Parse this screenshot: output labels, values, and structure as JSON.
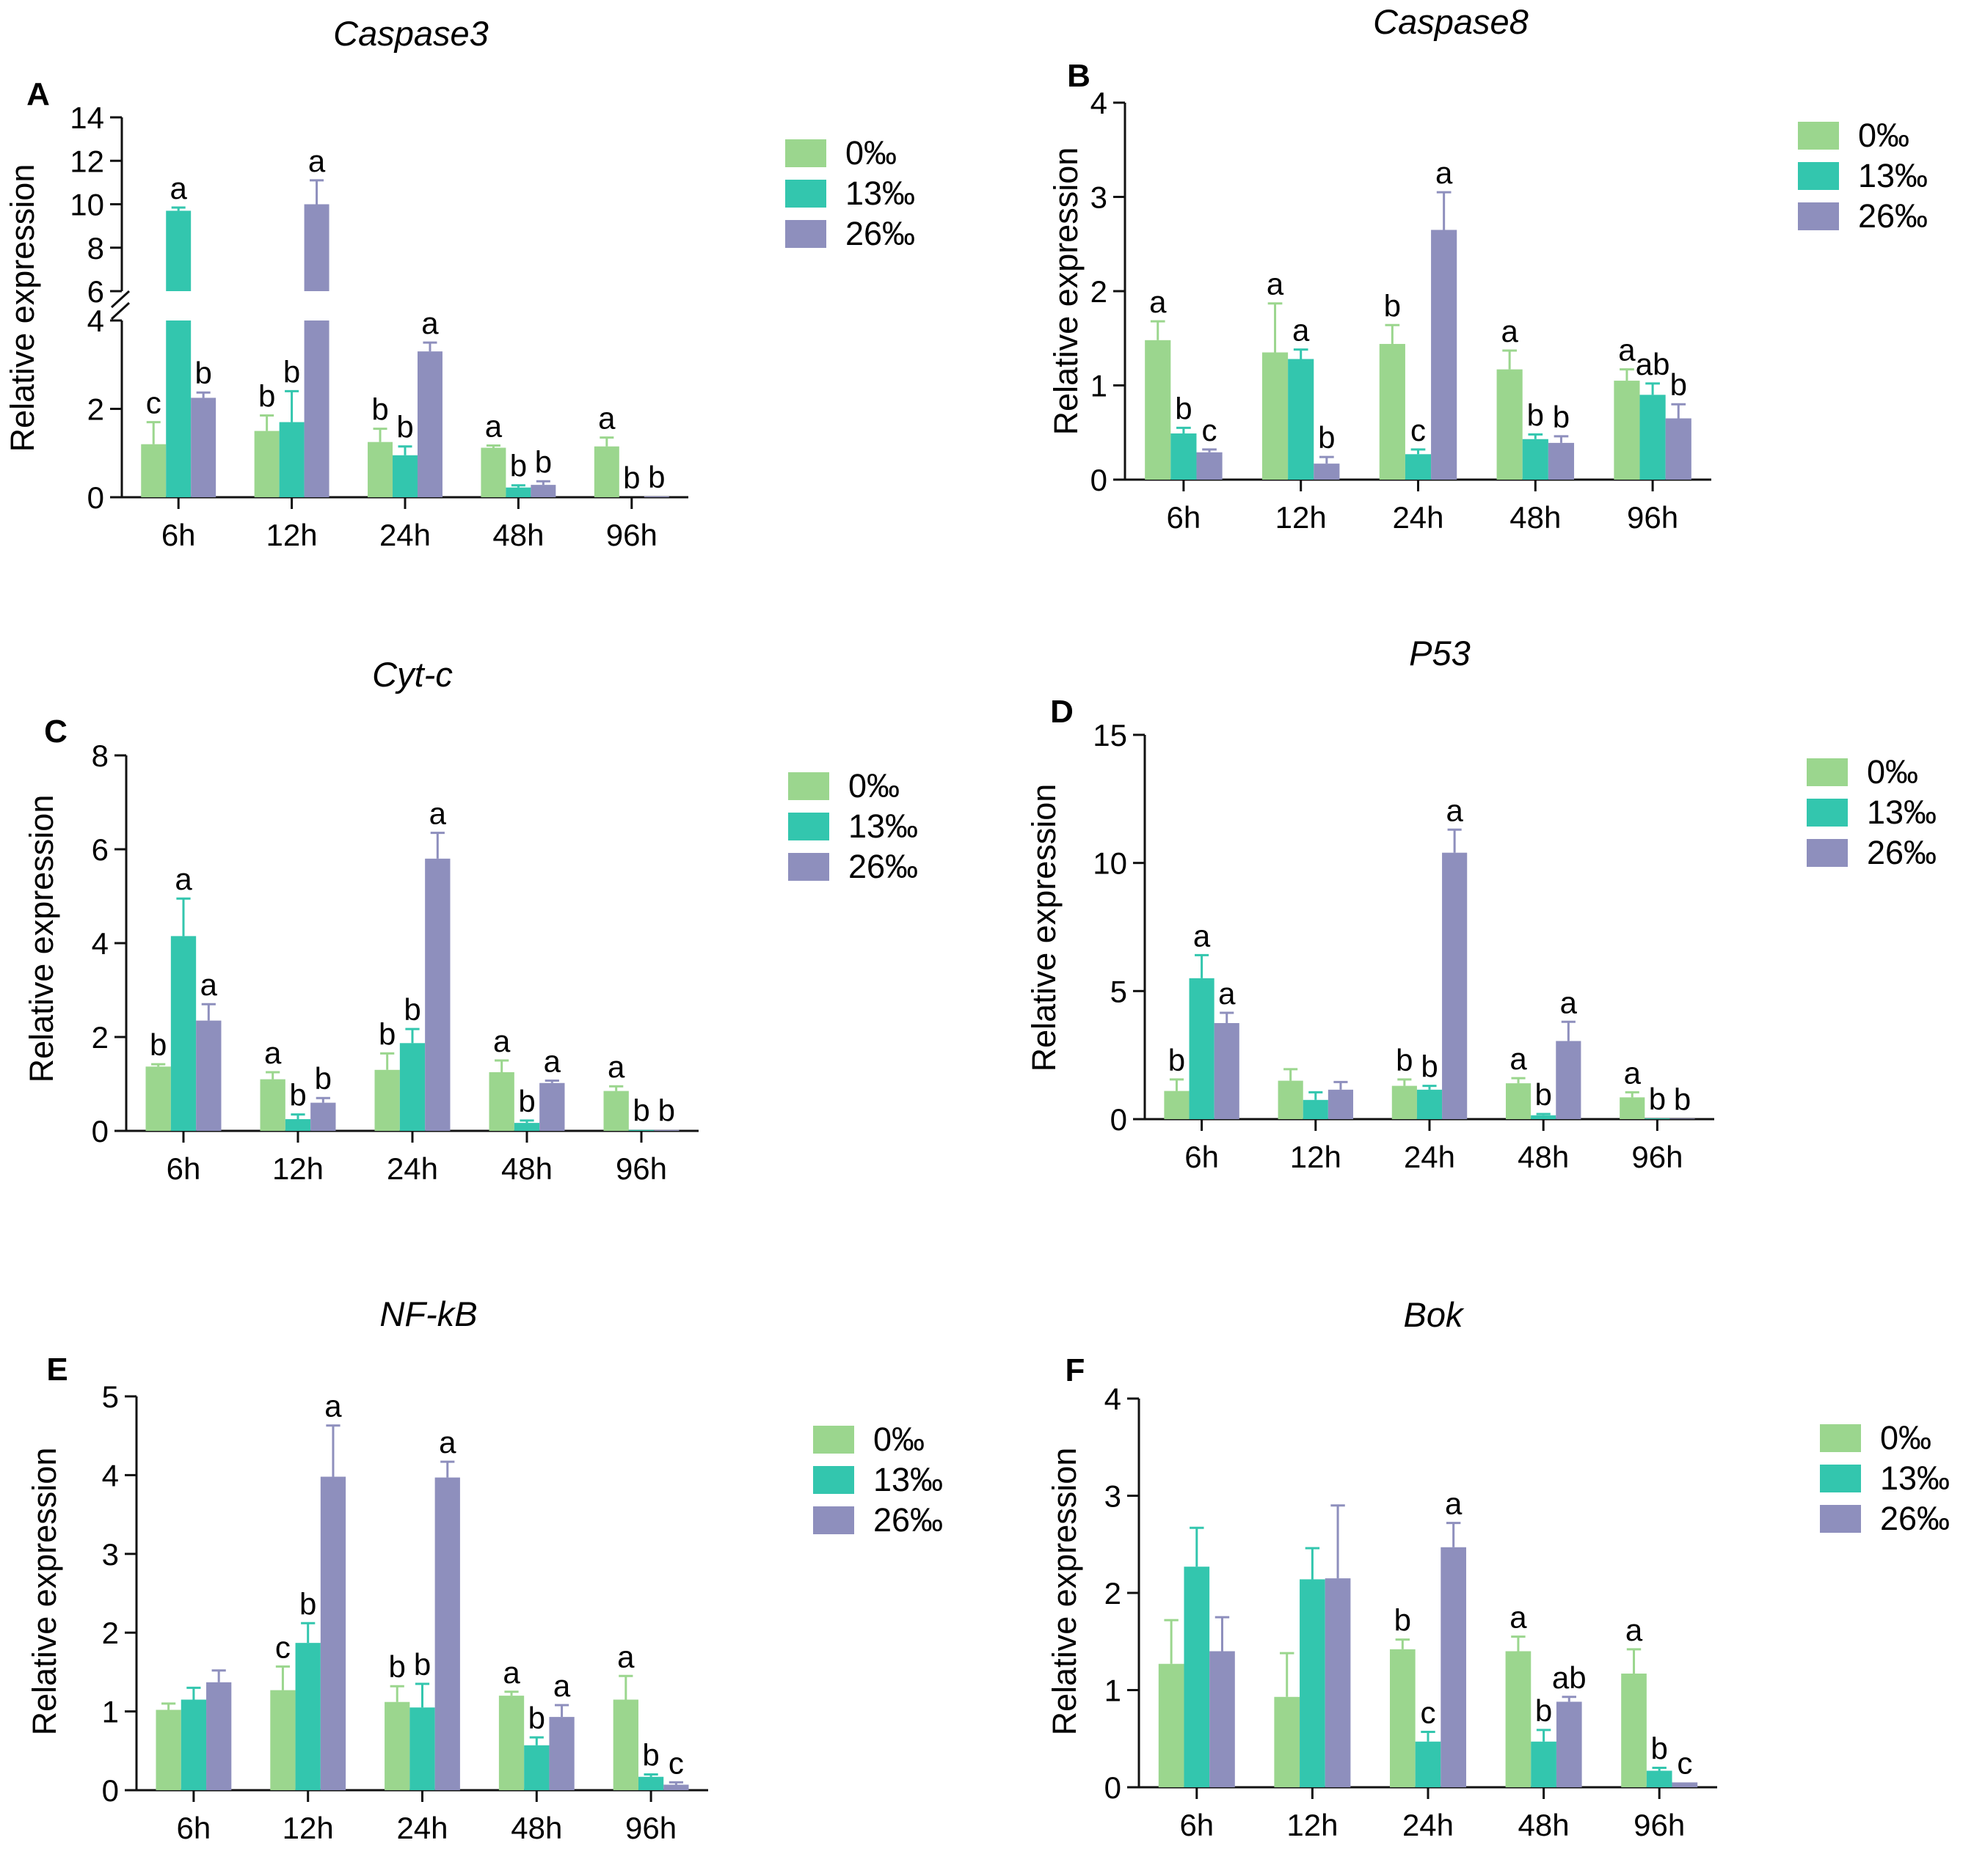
{
  "figure": {
    "colors": {
      "g0": "#9bd68e",
      "g13": "#33c6ae",
      "g26": "#8e8fbd"
    },
    "legend": [
      "0‰",
      "13‰",
      "26‰"
    ],
    "groups": [
      "6h",
      "12h",
      "24h",
      "48h",
      "96h"
    ],
    "ylabel": "Relative expression"
  },
  "chart_data": [
    {
      "type": "bar",
      "panel": "A",
      "title": "Caspase3",
      "ylabel": "Relative expression",
      "categories": [
        "6h",
        "12h",
        "24h",
        "48h",
        "96h"
      ],
      "axis_break": {
        "lower_range": [
          0,
          4
        ],
        "upper_range": [
          6,
          14
        ]
      },
      "yticks_lower": [
        "0",
        "2",
        "4"
      ],
      "yticks_upper": [
        "6",
        "8",
        "10",
        "12",
        "14"
      ],
      "series": [
        {
          "name": "0‰",
          "values": [
            1.2,
            1.5,
            1.25,
            1.12,
            1.15
          ],
          "errors": [
            0.5,
            0.35,
            0.3,
            0.05,
            0.2
          ],
          "labels": [
            "c",
            "b",
            "b",
            "a",
            "a"
          ]
        },
        {
          "name": "13‰",
          "values": [
            9.7,
            1.7,
            0.95,
            0.22,
            0.0
          ],
          "errors": [
            0.15,
            0.7,
            0.2,
            0.05,
            0.0
          ],
          "labels": [
            "a",
            "b",
            "b",
            "b",
            "b"
          ]
        },
        {
          "name": "26‰",
          "values": [
            2.25,
            10.0,
            3.3,
            0.28,
            0.02
          ],
          "errors": [
            0.12,
            1.1,
            0.2,
            0.08,
            0.0
          ],
          "labels": [
            "b",
            "a",
            "a",
            "b",
            "b"
          ]
        }
      ]
    },
    {
      "type": "bar",
      "panel": "B",
      "title": "Caspase8",
      "ylabel": "Relative expression",
      "categories": [
        "6h",
        "12h",
        "24h",
        "48h",
        "96h"
      ],
      "ylim": [
        0,
        4
      ],
      "yticks": [
        "0",
        "1",
        "2",
        "3",
        "4"
      ],
      "series": [
        {
          "name": "0‰",
          "values": [
            1.48,
            1.35,
            1.44,
            1.17,
            1.05
          ],
          "errors": [
            0.2,
            0.52,
            0.2,
            0.2,
            0.12
          ],
          "labels": [
            "a",
            "a",
            "b",
            "a",
            "a"
          ]
        },
        {
          "name": "13‰",
          "values": [
            0.49,
            1.28,
            0.27,
            0.43,
            0.9
          ],
          "errors": [
            0.06,
            0.1,
            0.05,
            0.05,
            0.12
          ],
          "labels": [
            "b",
            "a",
            "c",
            "b",
            "ab"
          ]
        },
        {
          "name": "26‰",
          "values": [
            0.29,
            0.17,
            2.65,
            0.39,
            0.65
          ],
          "errors": [
            0.03,
            0.07,
            0.4,
            0.07,
            0.15
          ],
          "labels": [
            "c",
            "b",
            "a",
            "b",
            "b"
          ]
        }
      ]
    },
    {
      "type": "bar",
      "panel": "C",
      "title": "Cyt-c",
      "ylabel": "Relative expression",
      "categories": [
        "6h",
        "12h",
        "24h",
        "48h",
        "96h"
      ],
      "ylim": [
        0,
        8
      ],
      "yticks": [
        "0",
        "2",
        "4",
        "6",
        "8"
      ],
      "series": [
        {
          "name": "0‰",
          "values": [
            1.37,
            1.1,
            1.3,
            1.25,
            0.85
          ],
          "errors": [
            0.05,
            0.15,
            0.35,
            0.25,
            0.1
          ],
          "labels": [
            "b",
            "a",
            "b",
            "a",
            "a"
          ]
        },
        {
          "name": "13‰",
          "values": [
            4.15,
            0.25,
            1.87,
            0.17,
            0.02
          ],
          "errors": [
            0.8,
            0.1,
            0.3,
            0.05,
            0.0
          ],
          "labels": [
            "a",
            "b",
            "b",
            "b",
            "b"
          ]
        },
        {
          "name": "26‰",
          "values": [
            2.35,
            0.6,
            5.8,
            1.02,
            0.02
          ],
          "errors": [
            0.35,
            0.1,
            0.55,
            0.05,
            0.0
          ],
          "labels": [
            "a",
            "b",
            "a",
            "a",
            "b"
          ]
        }
      ]
    },
    {
      "type": "bar",
      "panel": "D",
      "title": "P53",
      "ylabel": "Relative expression",
      "categories": [
        "6h",
        "12h",
        "24h",
        "48h",
        "96h"
      ],
      "ylim": [
        0,
        15
      ],
      "yticks": [
        "0",
        "5",
        "10",
        "15"
      ],
      "series": [
        {
          "name": "0‰",
          "values": [
            1.1,
            1.5,
            1.3,
            1.4,
            0.85
          ],
          "errors": [
            0.45,
            0.45,
            0.25,
            0.2,
            0.2
          ],
          "labels": [
            "b",
            "",
            "b",
            "a",
            "a"
          ]
        },
        {
          "name": "13‰",
          "values": [
            5.5,
            0.75,
            1.15,
            0.15,
            0.03
          ],
          "errors": [
            0.9,
            0.3,
            0.15,
            0.05,
            0.0
          ],
          "labels": [
            "a",
            "",
            "b",
            "b",
            "b"
          ]
        },
        {
          "name": "26‰",
          "values": [
            3.75,
            1.15,
            10.4,
            3.05,
            0.02
          ],
          "errors": [
            0.4,
            0.3,
            0.9,
            0.75,
            0.0
          ],
          "labels": [
            "a",
            "",
            "a",
            "a",
            "b"
          ]
        }
      ]
    },
    {
      "type": "bar",
      "panel": "E",
      "title": "NF-kB",
      "ylabel": "Relative expression",
      "categories": [
        "6h",
        "12h",
        "24h",
        "48h",
        "96h"
      ],
      "ylim": [
        0,
        5
      ],
      "yticks": [
        "0",
        "1",
        "2",
        "3",
        "4",
        "5"
      ],
      "series": [
        {
          "name": "0‰",
          "values": [
            1.02,
            1.27,
            1.12,
            1.2,
            1.15
          ],
          "errors": [
            0.08,
            0.3,
            0.2,
            0.05,
            0.3
          ],
          "labels": [
            "",
            "c",
            "b",
            "a",
            "a"
          ]
        },
        {
          "name": "13‰",
          "values": [
            1.15,
            1.87,
            1.05,
            0.57,
            0.17
          ],
          "errors": [
            0.15,
            0.25,
            0.3,
            0.1,
            0.03
          ],
          "labels": [
            "",
            "b",
            "b",
            "b",
            "b"
          ]
        },
        {
          "name": "26‰",
          "values": [
            1.37,
            3.98,
            3.97,
            0.93,
            0.07
          ],
          "errors": [
            0.15,
            0.65,
            0.2,
            0.15,
            0.03
          ],
          "labels": [
            "",
            "a",
            "a",
            "a",
            "c"
          ]
        }
      ]
    },
    {
      "type": "bar",
      "panel": "F",
      "title": "Bok",
      "ylabel": "Relative expression",
      "categories": [
        "6h",
        "12h",
        "24h",
        "48h",
        "96h"
      ],
      "ylim": [
        0,
        4
      ],
      "yticks": [
        "0",
        "1",
        "2",
        "3",
        "4"
      ],
      "series": [
        {
          "name": "0‰",
          "values": [
            1.27,
            0.93,
            1.42,
            1.4,
            1.17
          ],
          "errors": [
            0.45,
            0.45,
            0.1,
            0.15,
            0.25
          ],
          "labels": [
            "",
            "",
            "b",
            "a",
            "a"
          ]
        },
        {
          "name": "13‰",
          "values": [
            2.27,
            2.14,
            0.47,
            0.47,
            0.17
          ],
          "errors": [
            0.4,
            0.32,
            0.1,
            0.12,
            0.03
          ],
          "labels": [
            "",
            "",
            "c",
            "b",
            "b"
          ]
        },
        {
          "name": "26‰",
          "values": [
            1.4,
            2.15,
            2.47,
            0.88,
            0.05
          ],
          "errors": [
            0.35,
            0.75,
            0.25,
            0.05,
            0.0
          ],
          "labels": [
            "",
            "",
            "a",
            "ab",
            "c"
          ]
        }
      ]
    }
  ]
}
